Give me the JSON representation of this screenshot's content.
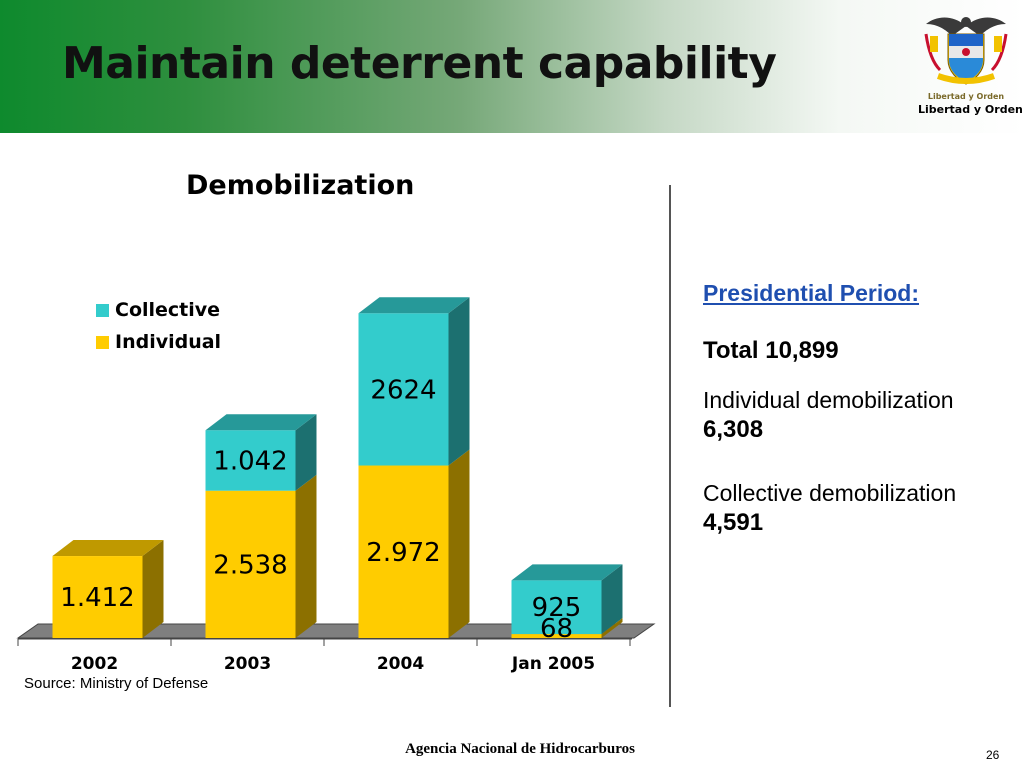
{
  "slide": {
    "title": "Maintain deterrent capability",
    "logo_motto_small": "Libertad y Orden",
    "logo_motto": "Libertad y Orden",
    "source": "Source: Ministry of Defense",
    "footer": "Agencia Nacional de Hidrocarburos",
    "page_number": "26",
    "colors": {
      "header_green": "#0e8a2d",
      "heading_blue": "#1f4fb0"
    }
  },
  "chart_data": {
    "type": "bar",
    "stacked": true,
    "three_d": true,
    "title": "Demobilization",
    "categories": [
      "2002",
      "2003",
      "2004",
      "Jan 2005"
    ],
    "series": [
      {
        "name": "Individual",
        "values": [
          1412,
          2538,
          2972,
          68
        ],
        "labels": [
          "1.412",
          "2.538",
          "2.972",
          "68"
        ],
        "color": "#ffcc00"
      },
      {
        "name": "Collective",
        "values": [
          null,
          1042,
          2624,
          925
        ],
        "labels": [
          "",
          "1.042",
          "2624",
          "925"
        ],
        "color": "#33cccc"
      }
    ],
    "legend_order": [
      "Collective",
      "Individual"
    ],
    "legend_position": "top-left",
    "ylim": [
      0,
      5600
    ],
    "grid": false
  },
  "side_panel": {
    "heading": "Presidential Period:",
    "total": "Total 10,899",
    "individual_label": "Individual demobilization",
    "individual_value": "6,308",
    "collective_label": "Collective demobilization",
    "collective_value": "4,591"
  }
}
